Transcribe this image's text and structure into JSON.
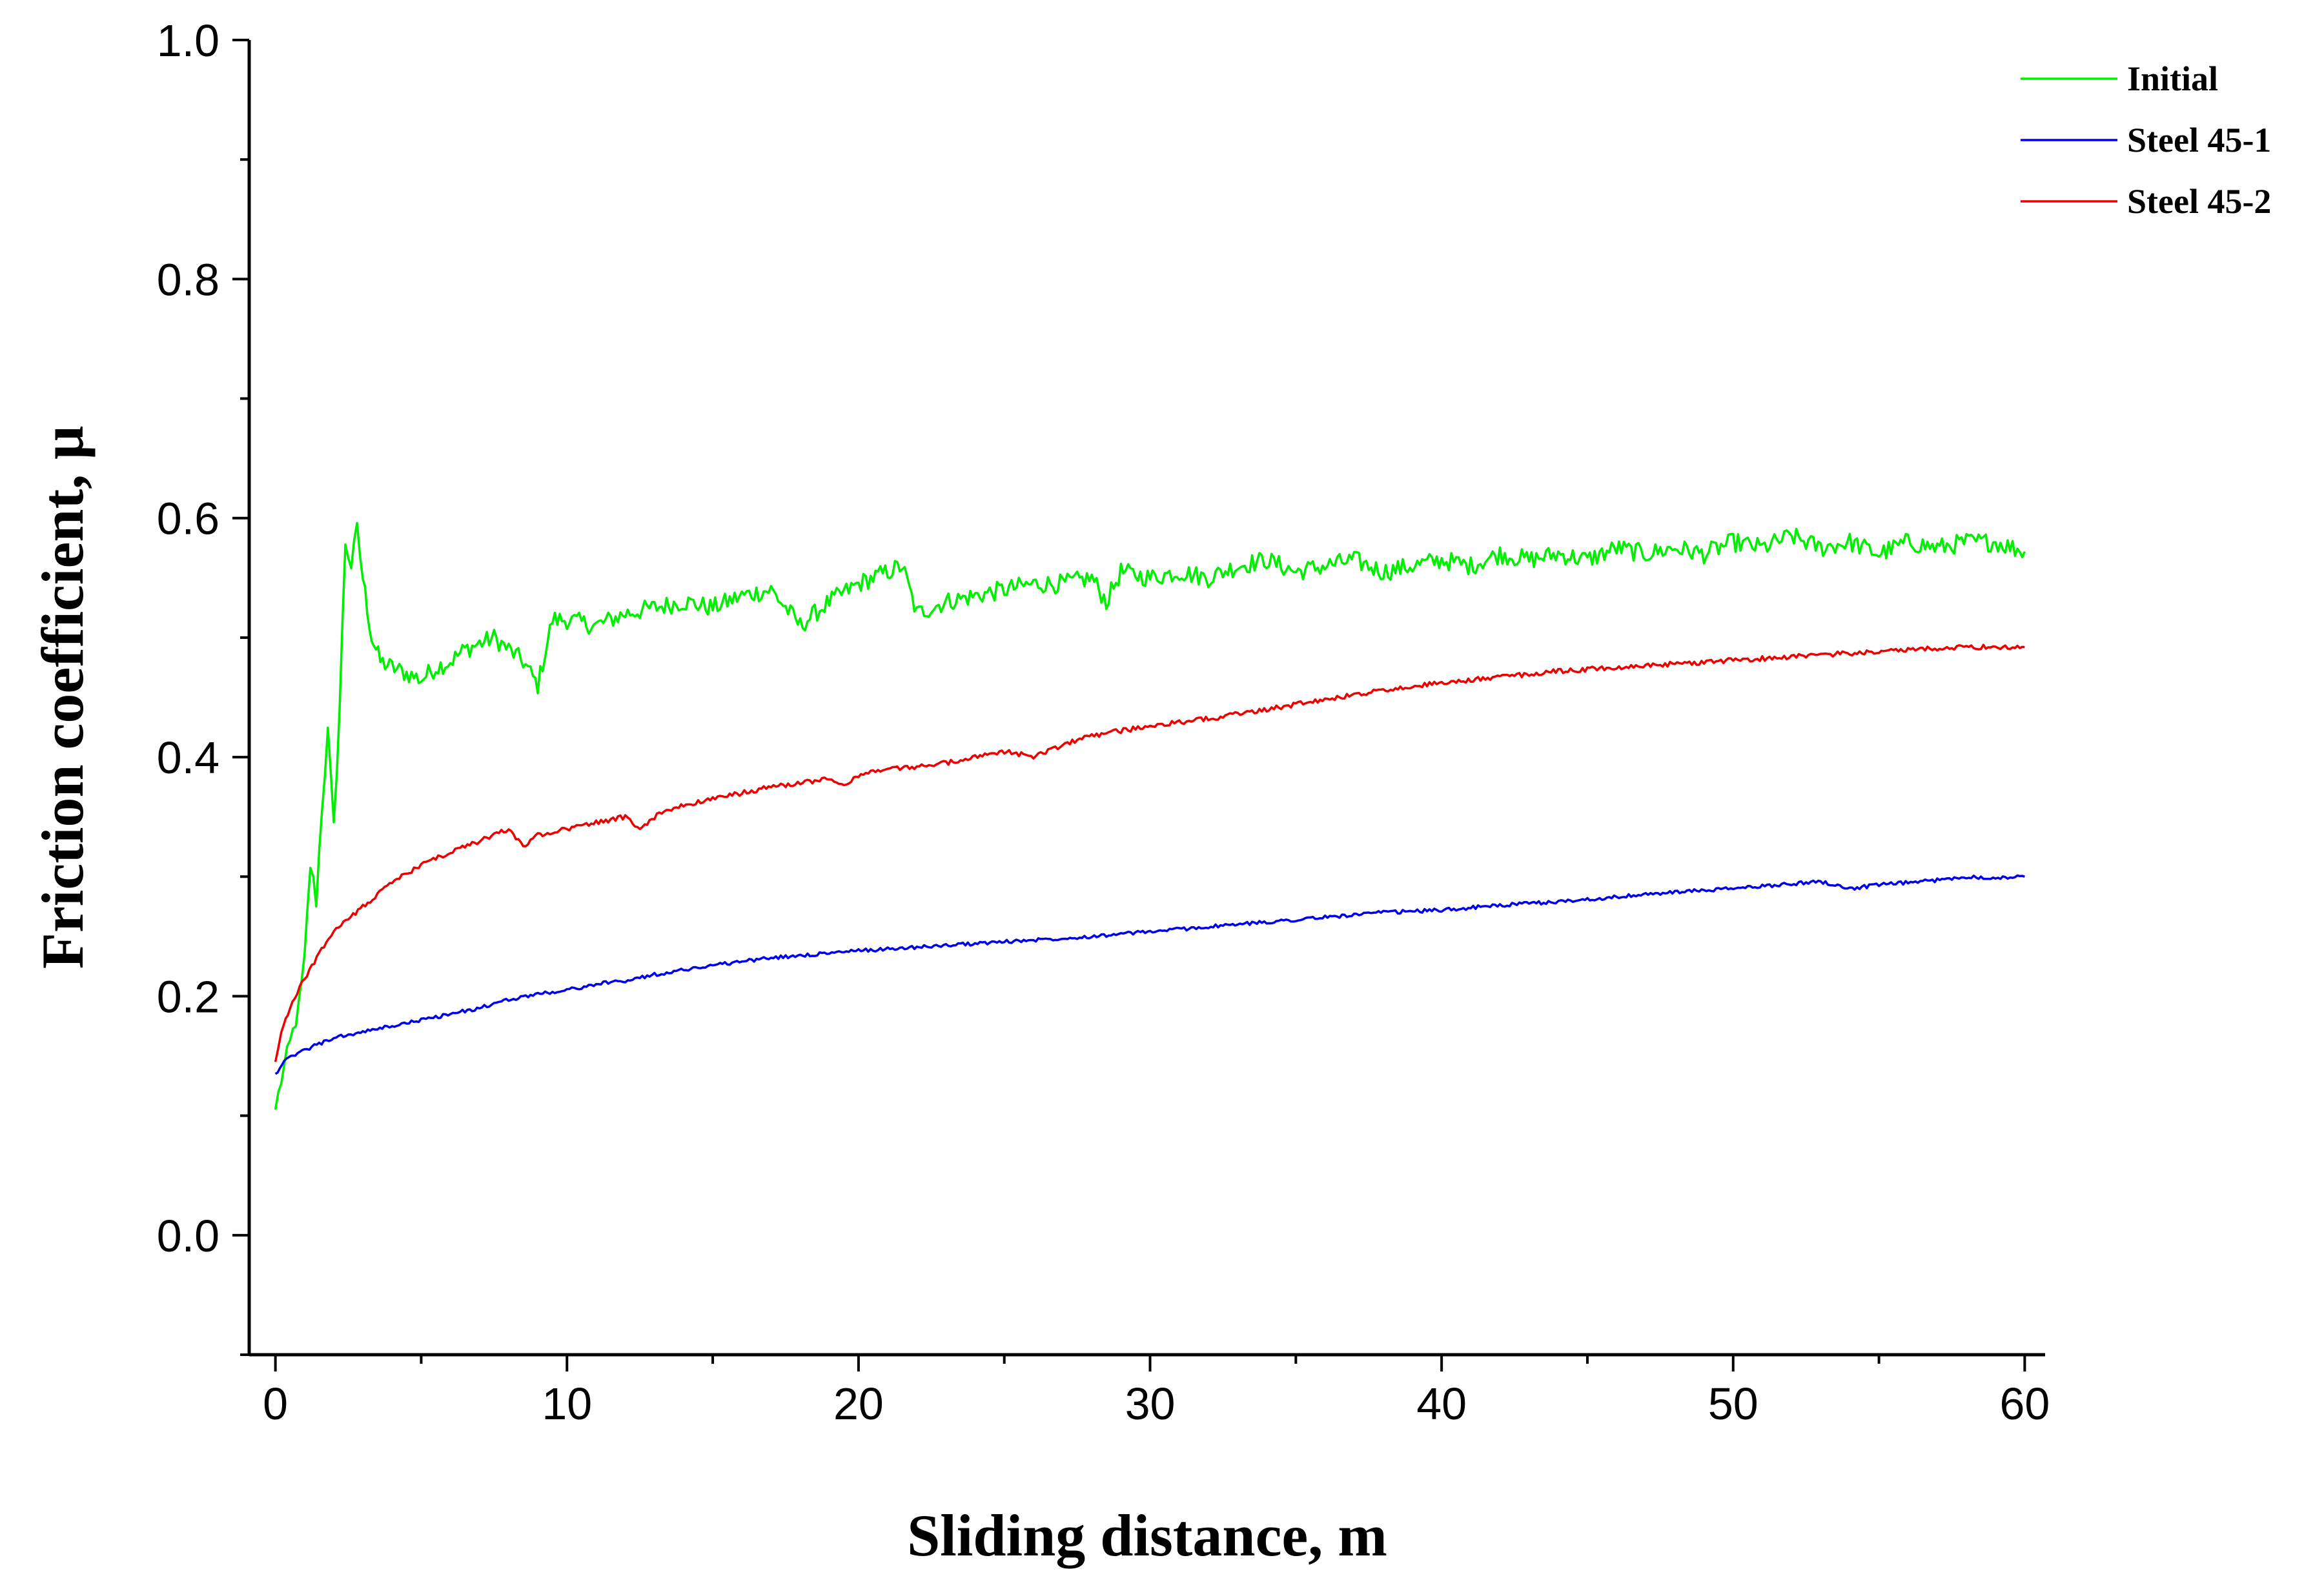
{
  "chart_data": {
    "type": "line",
    "title": "",
    "xlabel": "Sliding distance, m",
    "ylabel": "Friction coefficient, μ",
    "xlim": [
      -0.9,
      60.7
    ],
    "ylim": [
      -0.1,
      1.0
    ],
    "xticks": [
      0,
      10,
      20,
      30,
      40,
      50,
      60
    ],
    "xtick_labels": [
      "0",
      "10",
      "20",
      "30",
      "40",
      "50",
      "60"
    ],
    "yticks": [
      0.0,
      0.2,
      0.4,
      0.6,
      0.8,
      1.0
    ],
    "ytick_labels": [
      "0.0",
      "0.2",
      "0.4",
      "0.6",
      "0.8",
      "1.0"
    ],
    "grid": false,
    "legend_position": "top-right",
    "series": [
      {
        "name": "Initial",
        "color": "#00ee00",
        "x": [
          0,
          0.2,
          0.4,
          0.6,
          0.8,
          1.0,
          1.2,
          1.4,
          1.6,
          1.8,
          2.0,
          2.2,
          2.4,
          2.6,
          2.8,
          3.0,
          3.3,
          3.6,
          4,
          4.5,
          5,
          5.5,
          6,
          6.5,
          7,
          7.5,
          8,
          8.5,
          9,
          9.5,
          10,
          11,
          12,
          13,
          14,
          15,
          16,
          17,
          18,
          19,
          20,
          21,
          21.5,
          22,
          23,
          24,
          25,
          26,
          27,
          28,
          28.5,
          29,
          30,
          31,
          32,
          33,
          34,
          35,
          36,
          37,
          38,
          39,
          40,
          41,
          42,
          43,
          44,
          45,
          46,
          47,
          48,
          49,
          50,
          51,
          52,
          53,
          54,
          55,
          56,
          57,
          58,
          59,
          60
        ],
        "y": [
          0.105,
          0.13,
          0.15,
          0.17,
          0.19,
          0.23,
          0.31,
          0.28,
          0.36,
          0.42,
          0.34,
          0.44,
          0.58,
          0.56,
          0.59,
          0.55,
          0.5,
          0.48,
          0.475,
          0.47,
          0.465,
          0.475,
          0.48,
          0.49,
          0.495,
          0.5,
          0.49,
          0.48,
          0.46,
          0.515,
          0.515,
          0.51,
          0.52,
          0.525,
          0.53,
          0.525,
          0.535,
          0.54,
          0.51,
          0.53,
          0.545,
          0.555,
          0.56,
          0.52,
          0.53,
          0.535,
          0.54,
          0.545,
          0.545,
          0.55,
          0.53,
          0.555,
          0.55,
          0.555,
          0.55,
          0.56,
          0.565,
          0.555,
          0.56,
          0.565,
          0.555,
          0.56,
          0.565,
          0.56,
          0.57,
          0.565,
          0.57,
          0.565,
          0.575,
          0.57,
          0.575,
          0.57,
          0.58,
          0.575,
          0.585,
          0.575,
          0.58,
          0.57,
          0.58,
          0.575,
          0.58,
          0.58,
          0.572
        ]
      },
      {
        "name": "Steel 45-1",
        "color": "#0000ee",
        "x": [
          0,
          0.3,
          0.6,
          1,
          1.5,
          2,
          3,
          4,
          5,
          6,
          7,
          8,
          9,
          10,
          11,
          12,
          13,
          14,
          15,
          16,
          17,
          18,
          19,
          20,
          22,
          24,
          26,
          28,
          30,
          32,
          34,
          36,
          38,
          40,
          42,
          44,
          46,
          48,
          50,
          52,
          53,
          54,
          55,
          56,
          57,
          58,
          59,
          60
        ],
        "y": [
          0.135,
          0.145,
          0.15,
          0.155,
          0.16,
          0.165,
          0.17,
          0.175,
          0.18,
          0.185,
          0.19,
          0.197,
          0.202,
          0.205,
          0.21,
          0.213,
          0.218,
          0.222,
          0.226,
          0.229,
          0.232,
          0.234,
          0.236,
          0.238,
          0.241,
          0.244,
          0.247,
          0.25,
          0.254,
          0.258,
          0.262,
          0.266,
          0.27,
          0.272,
          0.276,
          0.279,
          0.283,
          0.287,
          0.29,
          0.294,
          0.296,
          0.29,
          0.293,
          0.295,
          0.297,
          0.3,
          0.299,
          0.3
        ]
      },
      {
        "name": "Steel 45-2",
        "color": "#ee0000",
        "x": [
          0,
          0.2,
          0.5,
          1,
          1.5,
          2,
          3,
          4,
          5,
          6,
          7,
          8,
          8.5,
          9,
          10,
          11,
          12,
          12.5,
          13,
          14,
          15,
          16,
          17,
          18,
          19,
          19.5,
          20,
          21,
          22,
          23,
          24,
          25,
          26,
          27,
          28,
          29,
          30,
          32,
          34,
          36,
          38,
          40,
          42,
          44,
          46,
          48,
          50,
          52,
          54,
          56,
          58,
          60
        ],
        "y": [
          0.145,
          0.17,
          0.19,
          0.215,
          0.235,
          0.255,
          0.275,
          0.295,
          0.31,
          0.32,
          0.33,
          0.34,
          0.325,
          0.335,
          0.34,
          0.345,
          0.35,
          0.34,
          0.35,
          0.36,
          0.365,
          0.37,
          0.375,
          0.378,
          0.382,
          0.375,
          0.385,
          0.39,
          0.392,
          0.395,
          0.4,
          0.405,
          0.4,
          0.41,
          0.418,
          0.422,
          0.426,
          0.432,
          0.44,
          0.448,
          0.456,
          0.462,
          0.467,
          0.472,
          0.475,
          0.478,
          0.481,
          0.484,
          0.487,
          0.49,
          0.492,
          0.492
        ]
      }
    ]
  }
}
